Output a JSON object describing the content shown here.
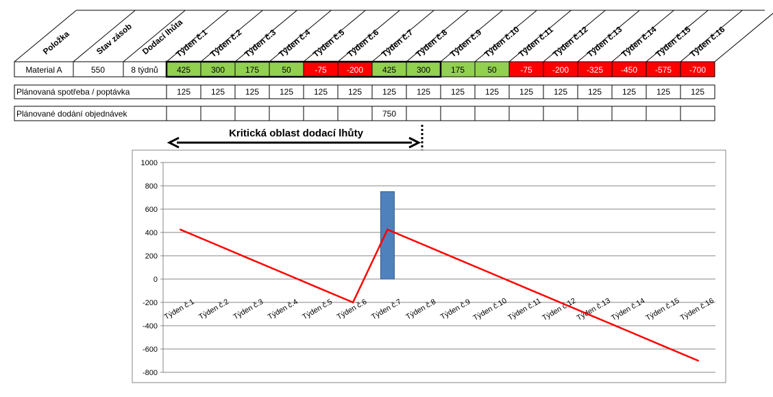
{
  "table": {
    "headers": [
      "Položka",
      "Stav zásob",
      "Dodací lhůta"
    ],
    "weeks": [
      "Týden č.1",
      "Týden č.2",
      "Týden č.3",
      "Týden č.4",
      "Týden č.5",
      "Týden č.6",
      "Týden č.7",
      "Týden č.8",
      "Týden č.9",
      "Týden č.10",
      "Týden č.11",
      "Týden č.12",
      "Týden č.13",
      "Týden č.14",
      "Týden č.15",
      "Týden č.16"
    ],
    "item_row": {
      "item": "Material A",
      "stock": "550",
      "lead_time": "8 týdnů",
      "values": [
        425,
        300,
        175,
        50,
        -75,
        -200,
        425,
        300,
        175,
        50,
        -75,
        -200,
        -325,
        -450,
        -575,
        -700
      ]
    },
    "demand_row": {
      "label": "Plánovaná spotřeba / poptávka",
      "values": [
        125,
        125,
        125,
        125,
        125,
        125,
        125,
        125,
        125,
        125,
        125,
        125,
        125,
        125,
        125,
        125
      ]
    },
    "orders_row": {
      "label": "Plánované dodání objednávek",
      "values": [
        "",
        "",
        "",
        "",
        "",
        "",
        "750",
        "",
        "",
        "",
        "",
        "",
        "",
        "",
        "",
        ""
      ]
    },
    "colors": {
      "positive": "#92d050",
      "negative": "#ff0000",
      "negative_text": "#ffffff"
    }
  },
  "annotation": {
    "critical_label": "Kritická oblast dodací lhůty"
  },
  "chart_data": {
    "type": "bar+line",
    "categories": [
      "Týden č.1",
      "Týden č.2",
      "Týden č.3",
      "Týden č.4",
      "Týden č.5",
      "Týden č.6",
      "Týden č.7",
      "Týden č.8",
      "Týden č.9",
      "Týden č.10",
      "Týden č.11",
      "Týden č.12",
      "Týden č.13",
      "Týden č.14",
      "Týden č.15",
      "Týden č.16"
    ],
    "series": [
      {
        "type": "bar",
        "values": [
          0,
          0,
          0,
          0,
          0,
          0,
          750,
          0,
          0,
          0,
          0,
          0,
          0,
          0,
          0,
          0
        ],
        "color": "#4f81bd"
      },
      {
        "type": "line",
        "values": [
          425,
          300,
          175,
          50,
          -75,
          -200,
          425,
          300,
          175,
          50,
          -75,
          -200,
          -325,
          -450,
          -575,
          -700
        ],
        "color": "#ff0000"
      }
    ],
    "yticks": [
      "1000",
      "800",
      "600",
      "400",
      "200",
      "0",
      "-200",
      "-400",
      "-600",
      "-800"
    ],
    "ylim": [
      -800,
      1000
    ],
    "grid": true,
    "legend": "none"
  }
}
